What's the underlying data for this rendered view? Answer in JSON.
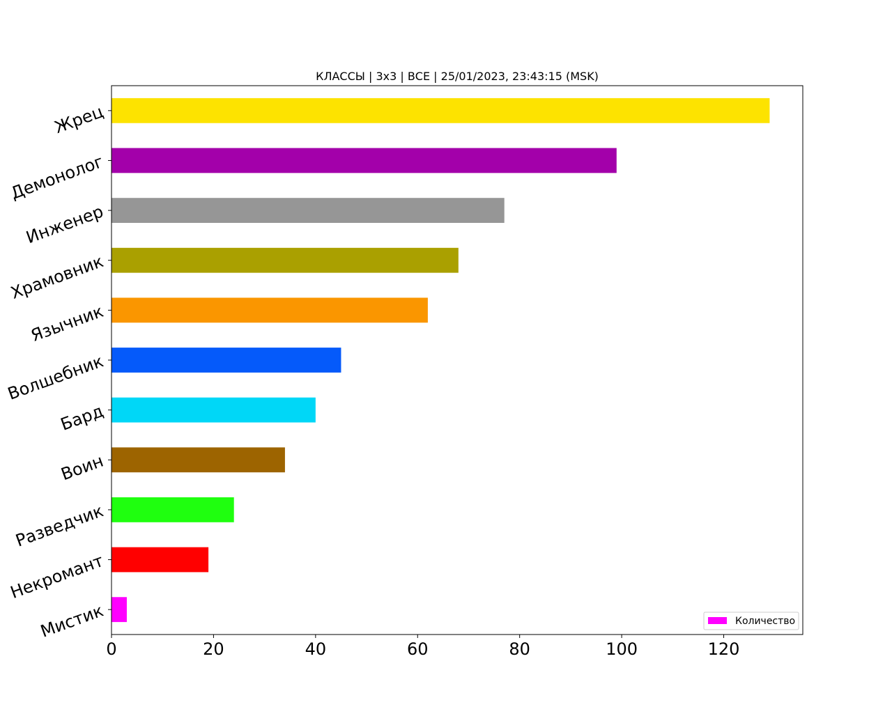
{
  "chart_data": {
    "type": "bar",
    "orientation": "horizontal",
    "title": "КЛАССЫ | 3x3 | ВСЕ | 25/01/2023, 23:43:15 (MSK)",
    "xlabel": "",
    "ylabel": "",
    "xlim": [
      0,
      135.5
    ],
    "xticks": [
      0,
      20,
      40,
      60,
      80,
      100,
      120
    ],
    "grid": false,
    "legend": {
      "placement": "bottom-right",
      "label": "Количество",
      "color": "#ff00ff"
    },
    "categories": [
      "Жрец",
      "Демонолог",
      "Инженер",
      "Храмовник",
      "Язычник",
      "Волшебник",
      "Бард",
      "Воин",
      "Разведчик",
      "Некромант",
      "Мистик"
    ],
    "series": [
      {
        "name": "Количество",
        "values": [
          129,
          99,
          77,
          68,
          62,
          45,
          40,
          34,
          24,
          19,
          3
        ],
        "colors": [
          "#fde300",
          "#a300aa",
          "#969696",
          "#aaa000",
          "#fa9600",
          "#055afa",
          "#00d7f7",
          "#9d6400",
          "#1fff0f",
          "#ff0000",
          "#ff00ff"
        ]
      }
    ]
  }
}
